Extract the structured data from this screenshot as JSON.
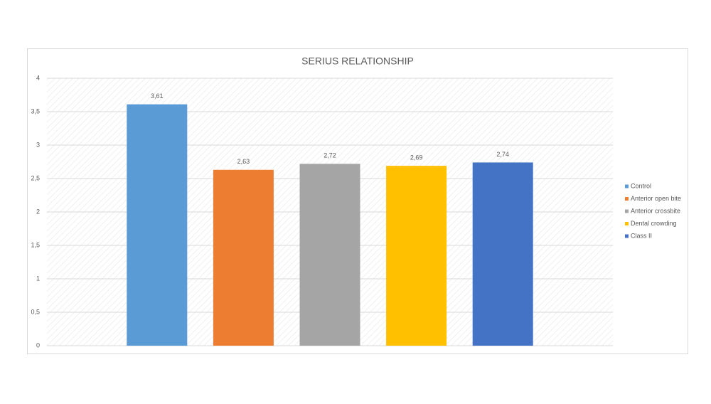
{
  "chart_data": {
    "type": "bar",
    "title": "SERIUS RELATIONSHIP",
    "categories": [
      null
    ],
    "series": [
      {
        "name": "Control",
        "color": "#5b9bd5",
        "values": [
          3.61
        ],
        "value_labels": [
          "3,61"
        ]
      },
      {
        "name": "Anterior open bite",
        "color": "#ed7d31",
        "values": [
          2.63
        ],
        "value_labels": [
          "2,63"
        ]
      },
      {
        "name": "Anterior crossbite",
        "color": "#a5a5a5",
        "values": [
          2.72
        ],
        "value_labels": [
          "2,72"
        ]
      },
      {
        "name": "Dental crowding",
        "color": "#ffc000",
        "values": [
          2.69
        ],
        "value_labels": [
          "2,69"
        ]
      },
      {
        "name": "Class II",
        "color": "#4472c4",
        "values": [
          2.74
        ],
        "value_labels": [
          "2,74"
        ]
      }
    ],
    "ylim": [
      0,
      4
    ],
    "yticks": [
      0,
      {
        "value": 0.5,
        "label": "0,5"
      },
      1,
      {
        "value": 1.5,
        "label": "1,5"
      },
      2,
      {
        "value": 2.5,
        "label": "2,5"
      },
      3,
      {
        "value": 3.5,
        "label": "3,5"
      },
      4
    ],
    "grid": true,
    "legend": "right"
  }
}
